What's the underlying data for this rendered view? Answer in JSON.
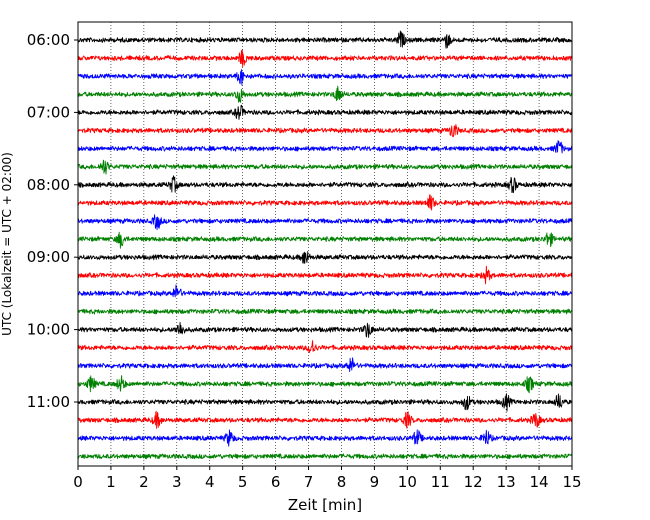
{
  "chart_data": {
    "type": "line",
    "chart_kind": "helicorder seismogram",
    "xlabel": "Zeit  [min]",
    "ylabel": "UTC (Lokalzeit = UTC + 02:00)",
    "xlim": [
      0,
      15
    ],
    "x_ticks": [
      "0",
      "1",
      "2",
      "3",
      "4",
      "5",
      "6",
      "7",
      "8",
      "9",
      "10",
      "11",
      "12",
      "13",
      "14",
      "15"
    ],
    "y_hour_labels": [
      "06:00",
      "07:00",
      "08:00",
      "09:00",
      "10:00",
      "11:00"
    ],
    "trace_interval_minutes": 15,
    "start_time": "06:00",
    "end_time": "12:00",
    "vertical_grid": "dotted at each minute",
    "trace_colors": [
      "#000000",
      "#ff0000",
      "#0000ff",
      "#008000"
    ],
    "series": [
      {
        "start": "06:00",
        "color": "#000000",
        "events_min": [
          9.8,
          11.2
        ]
      },
      {
        "start": "06:15",
        "color": "#ff0000",
        "events_min": [
          5.0
        ]
      },
      {
        "start": "06:30",
        "color": "#0000ff",
        "events_min": [
          4.95
        ]
      },
      {
        "start": "06:45",
        "color": "#008000",
        "events_min": [
          4.9,
          7.9
        ]
      },
      {
        "start": "07:00",
        "color": "#000000",
        "events_min": [
          4.9
        ]
      },
      {
        "start": "07:15",
        "color": "#ff0000",
        "events_min": [
          11.4
        ]
      },
      {
        "start": "07:30",
        "color": "#0000ff",
        "events_min": [
          14.6
        ]
      },
      {
        "start": "07:45",
        "color": "#008000",
        "events_min": [
          0.8
        ]
      },
      {
        "start": "08:00",
        "color": "#000000",
        "events_min": [
          2.9,
          13.2
        ]
      },
      {
        "start": "08:15",
        "color": "#ff0000",
        "events_min": [
          10.7
        ]
      },
      {
        "start": "08:30",
        "color": "#0000ff",
        "events_min": [
          2.4
        ]
      },
      {
        "start": "08:45",
        "color": "#008000",
        "events_min": [
          1.3,
          14.3
        ]
      },
      {
        "start": "09:00",
        "color": "#000000",
        "events_min": [
          6.9
        ]
      },
      {
        "start": "09:15",
        "color": "#ff0000",
        "events_min": [
          12.4
        ]
      },
      {
        "start": "09:30",
        "color": "#0000ff",
        "events_min": [
          3.0
        ]
      },
      {
        "start": "09:45",
        "color": "#008000",
        "events_min": []
      },
      {
        "start": "10:00",
        "color": "#000000",
        "events_min": [
          3.1,
          8.8
        ]
      },
      {
        "start": "10:15",
        "color": "#ff0000",
        "events_min": [
          7.1
        ]
      },
      {
        "start": "10:30",
        "color": "#0000ff",
        "events_min": [
          8.3
        ]
      },
      {
        "start": "10:45",
        "color": "#008000",
        "events_min": [
          0.4,
          1.3,
          13.7
        ]
      },
      {
        "start": "11:00",
        "color": "#000000",
        "events_min": [
          11.8,
          13.0,
          14.6
        ]
      },
      {
        "start": "11:15",
        "color": "#ff0000",
        "events_min": [
          2.4,
          10.0,
          13.9
        ]
      },
      {
        "start": "11:30",
        "color": "#0000ff",
        "events_min": [
          4.6,
          10.3,
          12.4
        ]
      },
      {
        "start": "11:45",
        "color": "#008000",
        "events_min": []
      }
    ]
  }
}
